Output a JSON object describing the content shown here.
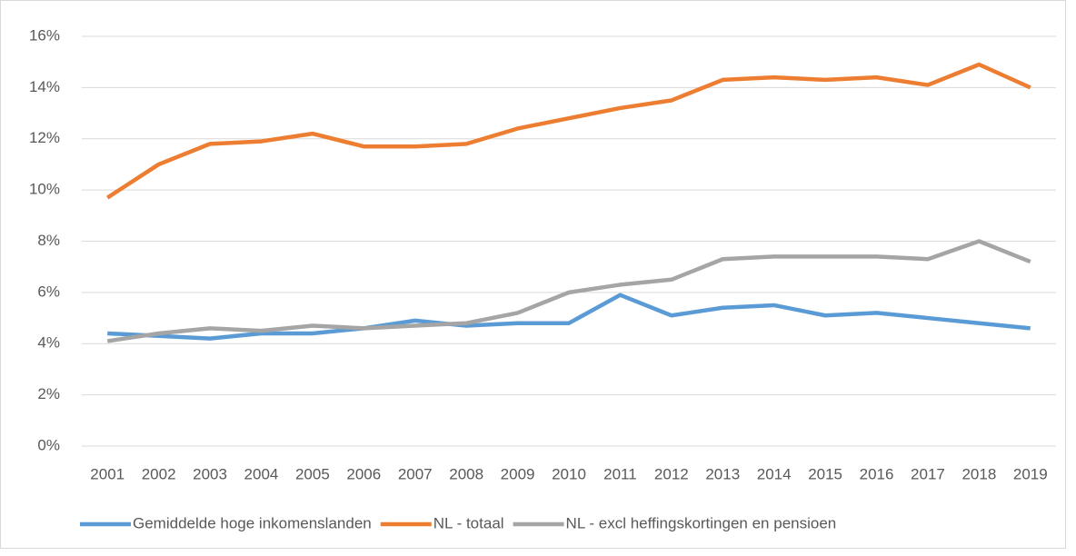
{
  "chart_data": {
    "type": "line",
    "categories": [
      "2001",
      "2002",
      "2003",
      "2004",
      "2005",
      "2006",
      "2007",
      "2008",
      "2009",
      "2010",
      "2011",
      "2012",
      "2013",
      "2014",
      "2015",
      "2016",
      "2017",
      "2018",
      "2019"
    ],
    "series": [
      {
        "name": "Gemiddelde hoge inkomenslanden",
        "color": "#5b9bd5",
        "values": [
          4.4,
          4.3,
          4.2,
          4.4,
          4.4,
          4.6,
          4.9,
          4.7,
          4.8,
          4.8,
          5.9,
          5.1,
          5.4,
          5.5,
          5.1,
          5.2,
          5.0,
          4.8,
          4.6
        ]
      },
      {
        "name": "NL - totaal",
        "color": "#ed7d31",
        "values": [
          9.7,
          11.0,
          11.8,
          11.9,
          12.2,
          11.7,
          11.7,
          11.8,
          12.4,
          12.8,
          13.2,
          13.5,
          14.3,
          14.4,
          14.3,
          14.4,
          14.1,
          14.9,
          14.0
        ]
      },
      {
        "name": "NL - excl heffingskortingen en pensioen",
        "color": "#a5a5a5",
        "values": [
          4.1,
          4.4,
          4.6,
          4.5,
          4.7,
          4.6,
          4.7,
          4.8,
          5.2,
          6.0,
          6.3,
          6.5,
          7.3,
          7.4,
          7.4,
          7.4,
          7.3,
          8.0,
          7.2
        ]
      }
    ],
    "ylim": [
      0,
      16
    ],
    "yticks": [
      {
        "value": 0,
        "label": "0%"
      },
      {
        "value": 2,
        "label": "2%"
      },
      {
        "value": 4,
        "label": "4%"
      },
      {
        "value": 6,
        "label": "6%"
      },
      {
        "value": 8,
        "label": "8%"
      },
      {
        "value": 10,
        "label": "10%"
      },
      {
        "value": 12,
        "label": "12%"
      },
      {
        "value": 14,
        "label": "14%"
      },
      {
        "value": 16,
        "label": "16%"
      }
    ],
    "grid": true,
    "legend": "bottom"
  }
}
